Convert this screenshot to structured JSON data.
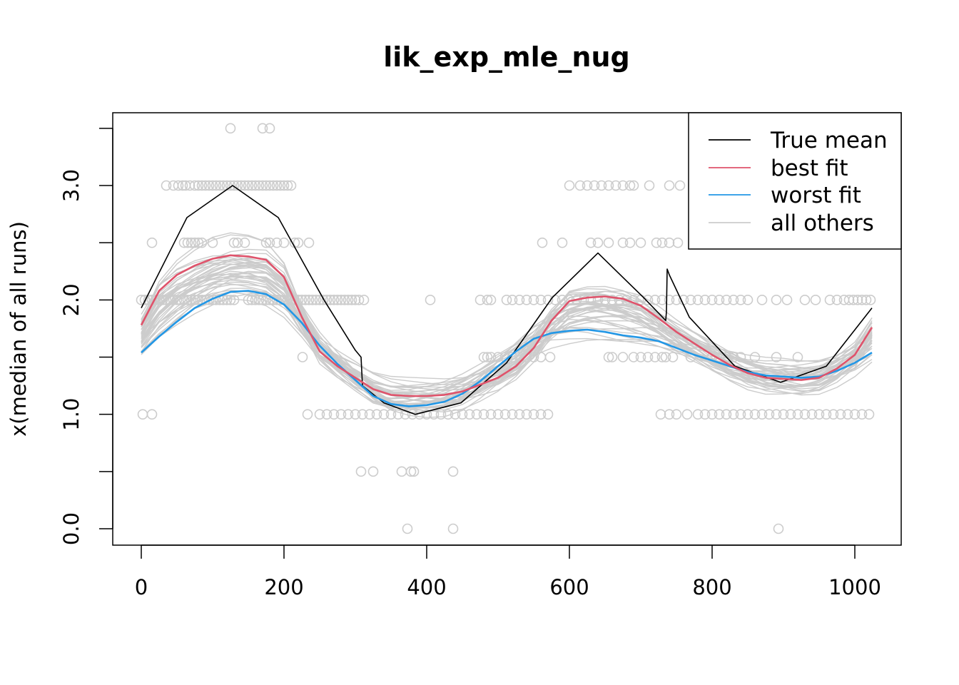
{
  "chart_data": {
    "type": "line",
    "title": "lik_exp_mle_nug",
    "xlabel": "",
    "ylabel": "x(median of all runs)",
    "xlim": [
      -10,
      1034
    ],
    "ylim": [
      -0.1,
      3.6
    ],
    "x_ticks": [
      0,
      200,
      400,
      600,
      800,
      1000
    ],
    "x_tick_labels": [
      "0",
      "200",
      "400",
      "600",
      "800",
      "1000"
    ],
    "y_ticks": [
      0.0,
      0.5,
      1.0,
      1.5,
      2.0,
      2.5,
      3.0,
      3.5
    ],
    "y_tick_labels": [
      "0.0",
      "",
      "1.0",
      "",
      "2.0",
      "",
      "3.0",
      ""
    ],
    "legend": {
      "position": "top-right",
      "entries": [
        {
          "label": "True mean",
          "color": "#000000"
        },
        {
          "label": "best fit",
          "color": "#DF536B"
        },
        {
          "label": "worst fit",
          "color": "#2297E6"
        },
        {
          "label": "all others",
          "color": "#CCCCCC"
        }
      ]
    },
    "series": [
      {
        "name": "True mean",
        "color": "#000000",
        "x": [
          0,
          64,
          128,
          192,
          256,
          300,
          308,
          310,
          340,
          384,
          448,
          512,
          576,
          640,
          704,
          735,
          736,
          737,
          740,
          768,
          832,
          896,
          960,
          1024
        ],
        "y": [
          1.93,
          2.72,
          3.0,
          2.72,
          2.0,
          1.56,
          1.5,
          1.25,
          1.1,
          1.0,
          1.1,
          1.45,
          2.02,
          2.41,
          2.02,
          1.82,
          1.9,
          2.27,
          2.22,
          1.85,
          1.42,
          1.28,
          1.42,
          1.93
        ]
      },
      {
        "name": "best fit",
        "color": "#DF536B",
        "x": [
          0,
          25,
          50,
          75,
          100,
          125,
          150,
          175,
          200,
          225,
          250,
          275,
          300,
          325,
          350,
          375,
          400,
          425,
          450,
          475,
          500,
          525,
          550,
          575,
          600,
          625,
          650,
          675,
          700,
          725,
          750,
          775,
          800,
          825,
          850,
          875,
          900,
          925,
          950,
          975,
          1000,
          1024
        ],
        "y": [
          1.78,
          2.08,
          2.22,
          2.3,
          2.36,
          2.39,
          2.38,
          2.35,
          2.2,
          1.85,
          1.55,
          1.42,
          1.32,
          1.22,
          1.17,
          1.16,
          1.16,
          1.17,
          1.2,
          1.26,
          1.32,
          1.42,
          1.58,
          1.82,
          1.99,
          2.02,
          2.03,
          2.01,
          1.95,
          1.84,
          1.72,
          1.62,
          1.52,
          1.43,
          1.36,
          1.32,
          1.31,
          1.3,
          1.32,
          1.4,
          1.52,
          1.76
        ]
      },
      {
        "name": "worst fit",
        "color": "#2297E6",
        "x": [
          0,
          25,
          50,
          75,
          100,
          125,
          150,
          175,
          200,
          225,
          250,
          275,
          300,
          325,
          350,
          375,
          400,
          425,
          450,
          475,
          500,
          525,
          550,
          575,
          600,
          625,
          650,
          675,
          700,
          725,
          750,
          775,
          800,
          825,
          850,
          875,
          900,
          925,
          950,
          975,
          1000,
          1024
        ],
        "y": [
          1.54,
          1.68,
          1.81,
          1.93,
          2.01,
          2.07,
          2.08,
          2.05,
          1.96,
          1.8,
          1.6,
          1.44,
          1.3,
          1.16,
          1.09,
          1.07,
          1.08,
          1.11,
          1.18,
          1.29,
          1.42,
          1.55,
          1.66,
          1.71,
          1.73,
          1.74,
          1.72,
          1.69,
          1.67,
          1.64,
          1.58,
          1.52,
          1.47,
          1.42,
          1.37,
          1.34,
          1.33,
          1.32,
          1.33,
          1.38,
          1.45,
          1.54
        ]
      }
    ],
    "background_runs": {
      "name": "all others",
      "color": "#CCCCCC",
      "count": 40
    },
    "points": {
      "name": "observations",
      "color": "#CCCCCC",
      "groups": [
        {
          "y": 3.5,
          "x": [
            125,
            170,
            180
          ]
        },
        {
          "y": 3.0,
          "x": [
            35,
            45,
            52,
            58,
            62,
            68,
            75,
            80,
            85,
            90,
            95,
            100,
            105,
            110,
            115,
            120,
            125,
            130,
            135,
            140,
            145,
            150,
            155,
            160,
            165,
            170,
            175,
            180,
            185,
            190,
            195,
            200,
            205,
            210,
            600,
            615,
            625,
            635,
            645,
            655,
            665,
            675,
            685,
            690,
            712,
            740,
            755
          ]
        },
        {
          "y": 2.5,
          "x": [
            15,
            60,
            65,
            70,
            75,
            80,
            85,
            100,
            130,
            135,
            145,
            175,
            180,
            190,
            200,
            215,
            220,
            235,
            562,
            590,
            630,
            640,
            655,
            675,
            685,
            700,
            722,
            730,
            740,
            752
          ]
        },
        {
          "y": 2.0,
          "x": [
            0,
            5,
            10,
            15,
            20,
            25,
            30,
            35,
            40,
            45,
            50,
            55,
            60,
            65,
            70,
            75,
            80,
            85,
            90,
            95,
            100,
            105,
            110,
            115,
            120,
            125,
            130,
            150,
            155,
            160,
            165,
            170,
            175,
            180,
            185,
            190,
            195,
            200,
            205,
            210,
            215,
            220,
            225,
            230,
            235,
            240,
            245,
            250,
            255,
            260,
            265,
            270,
            275,
            280,
            285,
            290,
            295,
            300,
            305,
            312,
            405,
            475,
            485,
            490,
            512,
            520,
            530,
            540,
            550,
            560,
            570,
            580,
            590,
            600,
            610,
            620,
            630,
            640,
            650,
            660,
            670,
            680,
            690,
            700,
            710,
            720,
            730,
            740,
            750,
            760,
            770,
            780,
            790,
            800,
            810,
            820,
            830,
            840,
            850,
            870,
            890,
            905,
            930,
            945,
            965,
            975,
            985,
            992,
            998,
            1004,
            1010,
            1016,
            1022
          ]
        },
        {
          "y": 1.5,
          "x": [
            226,
            480,
            485,
            490,
            500,
            510,
            520,
            530,
            540,
            550,
            560,
            573,
            655,
            660,
            675,
            690,
            700,
            710,
            720,
            730,
            735,
            745,
            770,
            800,
            810,
            820,
            830,
            840,
            860,
            890,
            920
          ]
        },
        {
          "y": 1.0,
          "x": [
            2,
            15,
            233,
            250,
            260,
            270,
            280,
            290,
            300,
            310,
            320,
            330,
            340,
            350,
            360,
            370,
            380,
            390,
            400,
            410,
            420,
            430,
            440,
            450,
            460,
            470,
            480,
            490,
            500,
            510,
            520,
            530,
            540,
            550,
            560,
            570,
            728,
            740,
            750,
            765,
            780,
            790,
            800,
            810,
            820,
            830,
            840,
            850,
            860,
            870,
            880,
            890,
            900,
            910,
            920,
            930,
            940,
            950,
            960,
            970,
            980,
            990,
            1000,
            1010,
            1020
          ]
        },
        {
          "y": 0.5,
          "x": [
            308,
            325,
            365,
            378,
            382,
            437
          ]
        },
        {
          "y": 0.0,
          "x": [
            373,
            437,
            893
          ]
        }
      ]
    }
  }
}
